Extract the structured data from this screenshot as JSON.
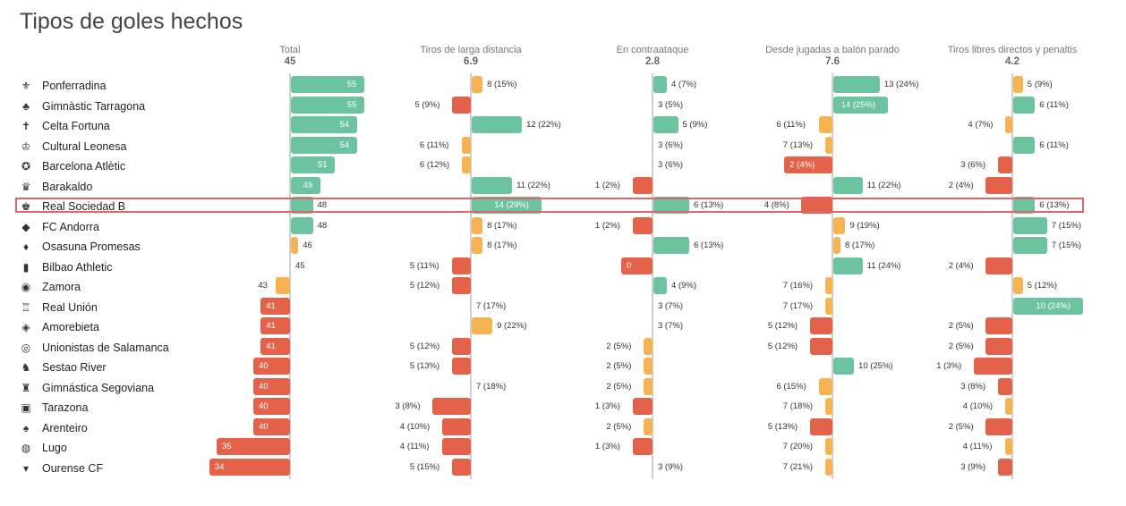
{
  "title": "Tipos de goles hechos",
  "colors": {
    "positive": "#6cc3a0",
    "mild_negative": "#f5b451",
    "negative": "#e5624a",
    "highlight_border": "#e06666"
  },
  "highlighted_team": "Real Sociedad B",
  "chart_data": {
    "type": "bar",
    "title": "Tipos de goles hechos",
    "categories": [
      "Ponferradina",
      "Gimnàstic Tarragona",
      "Celta Fortuna",
      "Cultural Leonesa",
      "Barcelona Atlètic",
      "Barakaldo",
      "Real Sociedad B",
      "FC Andorra",
      "Osasuna Promesas",
      "Bilbao Athletic",
      "Zamora",
      "Real Unión",
      "Amorebieta",
      "Unionistas de Salamanca",
      "Sestao River",
      "Gimnástica Segoviana",
      "Tarazona",
      "Arenteiro",
      "Lugo",
      "Ourense CF"
    ],
    "logos": [
      "⚜",
      "♣",
      "✝",
      "♔",
      "✪",
      "♛",
      "♚",
      "◆",
      "♦",
      "▮",
      "◉",
      "♖",
      "◈",
      "◎",
      "♞",
      "♜",
      "▣",
      "♠",
      "◍",
      "▾"
    ],
    "panels": [
      {
        "name": "Total",
        "average": 45,
        "avg_label": "45",
        "labels": [
          "55",
          "55",
          "54",
          "54",
          "51",
          "49",
          "48",
          "48",
          "46",
          "45",
          "43",
          "41",
          "41",
          "41",
          "40",
          "40",
          "40",
          "40",
          "35",
          "34"
        ],
        "values": [
          55,
          55,
          54,
          54,
          51,
          49,
          48,
          48,
          46,
          45,
          43,
          41,
          41,
          41,
          40,
          40,
          40,
          40,
          35,
          34
        ],
        "deviation": [
          10,
          10,
          9,
          9,
          6,
          4,
          3,
          3,
          1,
          0,
          -2,
          -4,
          -4,
          -4,
          -5,
          -5,
          -5,
          -5,
          -10,
          -11
        ],
        "level": [
          "pos",
          "pos",
          "pos",
          "pos",
          "pos",
          "pos",
          "pos",
          "pos",
          "mild",
          "none",
          "mild",
          "neg",
          "neg",
          "neg",
          "neg",
          "neg",
          "neg",
          "neg",
          "neg",
          "neg"
        ]
      },
      {
        "name": "Tiros de larga distancia",
        "average": 6.9,
        "avg_label": "6.9",
        "labels": [
          "8 (15%)",
          "5 (9%)",
          "12 (22%)",
          "6 (11%)",
          "6 (12%)",
          "11 (22%)",
          "14 (29%)",
          "8 (17%)",
          "8 (17%)",
          "5 (11%)",
          "5 (12%)",
          "7 (17%)",
          "9 (22%)",
          "5 (12%)",
          "5 (13%)",
          "7 (18%)",
          "3 (8%)",
          "4 (10%)",
          "4 (11%)",
          "5 (15%)"
        ],
        "values": [
          8,
          5,
          12,
          6,
          6,
          11,
          14,
          8,
          8,
          5,
          5,
          7,
          9,
          5,
          5,
          7,
          3,
          4,
          4,
          5
        ],
        "deviation": [
          1.1,
          -1.9,
          5.1,
          -0.9,
          -0.9,
          4.1,
          7.1,
          1.1,
          1.1,
          -1.9,
          -1.9,
          0.1,
          2.1,
          -1.9,
          -1.9,
          0.1,
          -3.9,
          -2.9,
          -2.9,
          -1.9
        ],
        "level": [
          "mild",
          "neg",
          "pos",
          "mild",
          "mild",
          "pos",
          "pos",
          "mild",
          "mild",
          "neg",
          "neg",
          "none",
          "mild",
          "neg",
          "neg",
          "none",
          "neg",
          "neg",
          "neg",
          "neg"
        ]
      },
      {
        "name": "En contraataque",
        "average": 2.8,
        "avg_label": "2.8",
        "labels": [
          "4 (7%)",
          "3 (5%)",
          "5 (9%)",
          "3 (6%)",
          "3 (6%)",
          "1 (2%)",
          "6 (13%)",
          "1 (2%)",
          "6 (13%)",
          "0",
          "4 (9%)",
          "3 (7%)",
          "3 (7%)",
          "2 (5%)",
          "2 (5%)",
          "2 (5%)",
          "1 (3%)",
          "2 (5%)",
          "1 (3%)",
          "3 (9%)"
        ],
        "values": [
          4,
          3,
          5,
          3,
          3,
          1,
          6,
          1,
          6,
          0,
          4,
          3,
          3,
          2,
          2,
          2,
          1,
          2,
          1,
          3
        ],
        "deviation": [
          1.2,
          0.2,
          2.2,
          0.2,
          0.2,
          -1.8,
          3.2,
          -1.8,
          3.2,
          -2.8,
          1.2,
          0.2,
          0.2,
          -0.8,
          -0.8,
          -0.8,
          -1.8,
          -0.8,
          -1.8,
          0.2
        ],
        "level": [
          "pos",
          "none",
          "pos",
          "none",
          "none",
          "neg",
          "pos",
          "neg",
          "pos",
          "neg",
          "pos",
          "none",
          "none",
          "mild",
          "mild",
          "mild",
          "neg",
          "mild",
          "neg",
          "none"
        ]
      },
      {
        "name": "Desde jugadas a balón parado",
        "average": 7.6,
        "avg_label": "7.6",
        "labels": [
          "13 (24%)",
          "14 (25%)",
          "6 (11%)",
          "7 (13%)",
          "2 (4%)",
          "11 (22%)",
          "4 (8%)",
          "9 (19%)",
          "8 (17%)",
          "11 (24%)",
          "7 (16%)",
          "7 (17%)",
          "5 (12%)",
          "5 (12%)",
          "10 (25%)",
          "6 (15%)",
          "7 (18%)",
          "5 (13%)",
          "7 (20%)",
          "7 (21%)"
        ],
        "values": [
          13,
          14,
          6,
          7,
          2,
          11,
          4,
          9,
          8,
          11,
          7,
          7,
          5,
          5,
          10,
          6,
          7,
          5,
          7,
          7
        ],
        "deviation": [
          5.4,
          6.4,
          -1.6,
          -0.6,
          -5.6,
          3.4,
          -3.6,
          1.4,
          0.4,
          3.4,
          -0.6,
          -0.6,
          -2.6,
          -2.6,
          2.4,
          -1.6,
          -0.6,
          -2.6,
          -0.6,
          -0.6
        ],
        "level": [
          "pos",
          "pos",
          "mild",
          "mild",
          "neg",
          "pos",
          "neg",
          "mild",
          "mild",
          "pos",
          "mild",
          "mild",
          "neg",
          "neg",
          "pos",
          "mild",
          "mild",
          "neg",
          "mild",
          "mild"
        ]
      },
      {
        "name": "Tiros libres directos y penaltis",
        "average": 4.2,
        "avg_label": "4.2",
        "labels": [
          "5 (9%)",
          "6 (11%)",
          "4 (7%)",
          "6 (11%)",
          "3 (6%)",
          "2 (4%)",
          "6 (13%)",
          "7 (15%)",
          "7 (15%)",
          "2 (4%)",
          "5 (12%)",
          "10 (24%)",
          "2 (5%)",
          "2 (5%)",
          "1 (3%)",
          "3 (8%)",
          "4 (10%)",
          "2 (5%)",
          "4 (11%)",
          "3 (9%)"
        ],
        "values": [
          5,
          6,
          4,
          6,
          3,
          2,
          6,
          7,
          7,
          2,
          5,
          10,
          2,
          2,
          1,
          3,
          4,
          2,
          4,
          3
        ],
        "deviation": [
          0.8,
          1.8,
          -0.2,
          1.8,
          -1.2,
          -2.2,
          1.8,
          2.8,
          2.8,
          -2.2,
          0.8,
          5.8,
          -2.2,
          -2.2,
          -3.2,
          -1.2,
          -0.2,
          -2.2,
          -0.2,
          -1.2
        ],
        "level": [
          "mild",
          "pos",
          "mild",
          "pos",
          "neg",
          "neg",
          "pos",
          "pos",
          "pos",
          "neg",
          "mild",
          "pos",
          "neg",
          "neg",
          "neg",
          "neg",
          "mild",
          "neg",
          "mild",
          "neg"
        ]
      }
    ]
  }
}
